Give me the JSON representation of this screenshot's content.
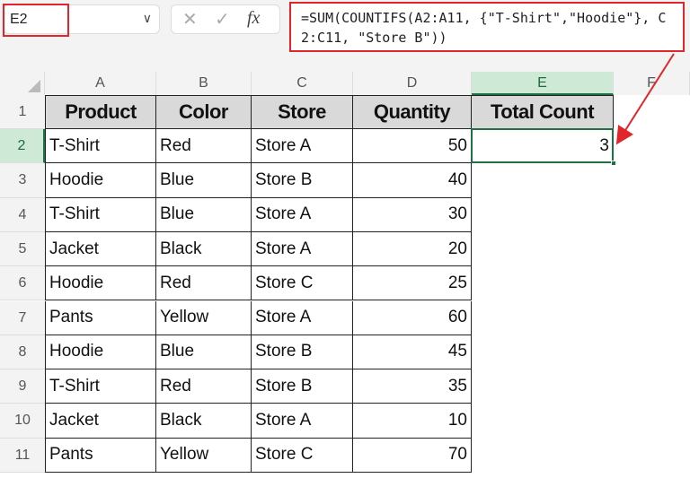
{
  "name_box": {
    "value": "E2"
  },
  "formula_bar": {
    "cancel_icon": "x-icon",
    "enter_icon": "check-icon",
    "fx_label": "fx",
    "formula": "=SUM(COUNTIFS(A2:A11, {\"T-Shirt\",\"Hoodie\"}, C2:C11, \"Store B\"))"
  },
  "columns": [
    "A",
    "B",
    "C",
    "D",
    "E",
    "F"
  ],
  "rows": [
    "1",
    "2",
    "3",
    "4",
    "5",
    "6",
    "7",
    "8",
    "9",
    "10",
    "11"
  ],
  "headers": [
    "Product",
    "Color",
    "Store",
    "Quantity",
    "Total Count"
  ],
  "data": [
    [
      "T-Shirt",
      "Red",
      "Store A",
      "50",
      "3"
    ],
    [
      "Hoodie",
      "Blue",
      "Store B",
      "40",
      ""
    ],
    [
      "T-Shirt",
      "Blue",
      "Store A",
      "30",
      ""
    ],
    [
      "Jacket",
      "Black",
      "Store A",
      "20",
      ""
    ],
    [
      "Hoodie",
      "Red",
      "Store C",
      "25",
      ""
    ],
    [
      "Pants",
      "Yellow",
      "Store A",
      "60",
      ""
    ],
    [
      "Hoodie",
      "Blue",
      "Store B",
      "45",
      ""
    ],
    [
      "T-Shirt",
      "Red",
      "Store B",
      "35",
      ""
    ],
    [
      "Jacket",
      "Black",
      "Store A",
      "10",
      ""
    ],
    [
      "Pants",
      "Yellow",
      "Store C",
      "70",
      ""
    ]
  ],
  "colors": {
    "highlight_red": "#e0262b",
    "selection_green": "#1e7145",
    "header_fill": "#d9d9d9"
  }
}
